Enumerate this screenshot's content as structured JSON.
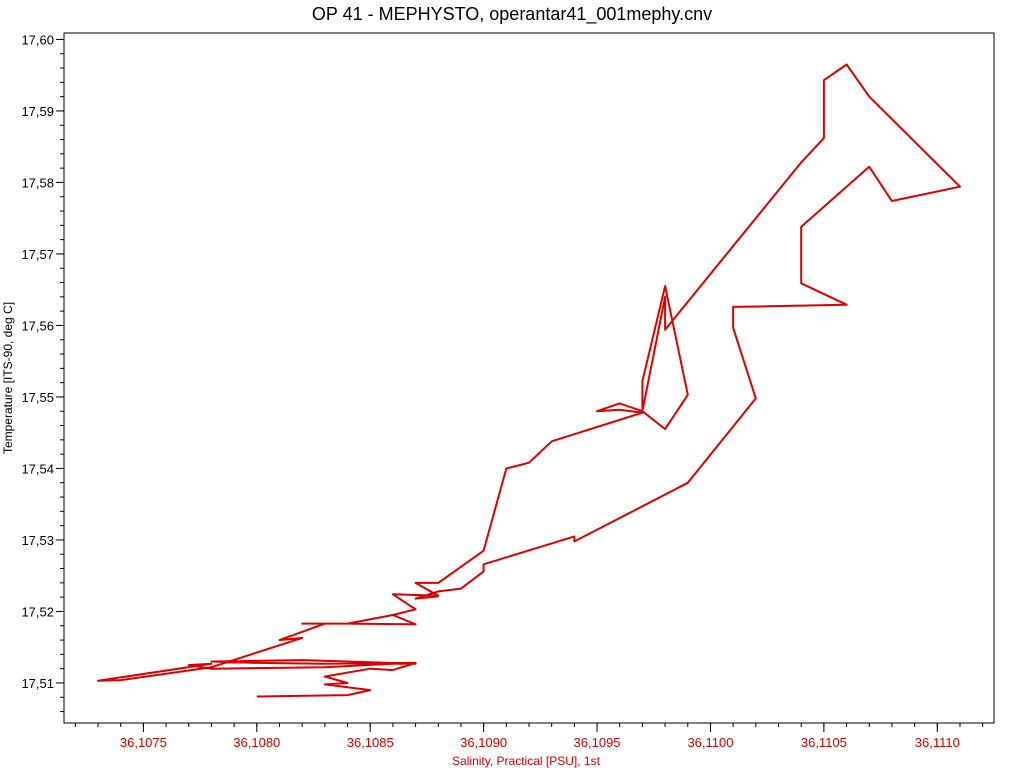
{
  "chart_data": {
    "type": "line",
    "title": "OP 41 - MEPHYSTO, operantar41_001mephy.cnv",
    "xlabel": "Salinity, Practical [PSU], 1st",
    "ylabel": "Temperature [ITS-90, deg C]",
    "xlim": [
      36.10715,
      36.11125
    ],
    "ylim": [
      17.5044,
      17.6009
    ],
    "x_ticks": [
      36.1075,
      36.108,
      36.1085,
      36.109,
      36.1095,
      36.11,
      36.1105,
      36.111
    ],
    "x_tick_labels": [
      "36,1075",
      "36,1080",
      "36,1085",
      "36,1090",
      "36,1095",
      "36,1100",
      "36,1105",
      "36,1110"
    ],
    "y_ticks": [
      17.51,
      17.52,
      17.53,
      17.54,
      17.55,
      17.56,
      17.57,
      17.58,
      17.59,
      17.6
    ],
    "y_tick_labels": [
      "17,51",
      "17,52",
      "17,53",
      "17,54",
      "17,55",
      "17,56",
      "17,57",
      "17,58",
      "17,59",
      "17,60"
    ],
    "x_minor_step": 0.0001,
    "y_minor_step": 0.002,
    "grid": false,
    "colors": {
      "series": "#dd0000",
      "x_axis_text": "#cc0000",
      "y_axis_text": "#000000",
      "frame": "#000000"
    },
    "series": [
      {
        "name": "",
        "x": [
          36.108,
          36.1084,
          36.1085,
          36.1083,
          36.1084,
          36.1083,
          36.1085,
          36.1086,
          36.1087,
          36.1083,
          36.108,
          36.1078,
          36.1082,
          36.1087,
          36.1086,
          36.1083,
          36.1078,
          36.1077,
          36.1078,
          36.1073,
          36.1074,
          36.1078,
          36.1082,
          36.1081,
          36.1083,
          36.1082,
          36.1084,
          36.1087,
          36.1086,
          36.1084,
          36.1086,
          36.1087,
          36.1086,
          36.1088,
          36.1087,
          36.1088,
          36.109,
          36.1091,
          36.1092,
          36.1093,
          36.1097,
          36.1096,
          36.1095,
          36.1096,
          36.1097,
          36.1097,
          36.1098,
          36.1099,
          36.1098,
          36.1097,
          36.1098,
          36.1098,
          36.1104,
          36.1105,
          36.1105,
          36.1106,
          36.1107,
          36.1111,
          36.1108,
          36.1107,
          36.1104,
          36.1104,
          36.1106,
          36.1101,
          36.1101,
          36.1102,
          36.1099,
          36.1094,
          36.1094,
          36.109,
          36.109,
          36.1089,
          36.1088,
          36.1087,
          36.1088
        ]
      },
      {
        "name": "",
        "y": [
          17.5081,
          17.5083,
          17.509,
          17.5098,
          17.51,
          17.5109,
          17.512,
          17.5118,
          17.5128,
          17.5127,
          17.5128,
          17.513,
          17.5132,
          17.5127,
          17.5127,
          17.5122,
          17.512,
          17.5125,
          17.5127,
          17.5103,
          17.5104,
          17.5122,
          17.5163,
          17.516,
          17.5183,
          17.5183,
          17.5183,
          17.5182,
          17.5195,
          17.5183,
          17.5195,
          17.5203,
          17.5224,
          17.5222,
          17.524,
          17.524,
          17.5285,
          17.54,
          17.5408,
          17.5438,
          17.5478,
          17.5482,
          17.548,
          17.5491,
          17.548,
          17.5522,
          17.5655,
          17.5503,
          17.5455,
          17.548,
          17.564,
          17.5594,
          17.5828,
          17.5862,
          17.5943,
          17.5965,
          17.592,
          17.5794,
          17.5774,
          17.5822,
          17.5738,
          17.5659,
          17.5629,
          17.5626,
          17.5597,
          17.5498,
          17.538,
          17.5298,
          17.5305,
          17.5266,
          17.5256,
          17.5232,
          17.5228,
          17.5218,
          17.5221
        ]
      }
    ]
  }
}
